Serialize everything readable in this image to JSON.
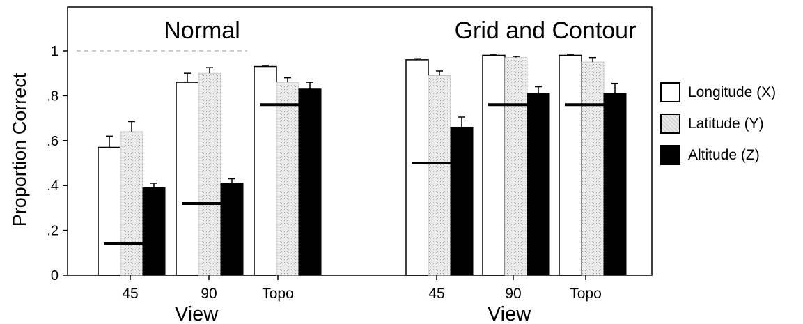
{
  "chart_data": {
    "type": "bar",
    "ylabel": "Proportion Correct",
    "y_ticks": [
      "0",
      ".2",
      ".4",
      ".6",
      ".8",
      "1"
    ],
    "ylim": [
      0,
      1.15
    ],
    "panels": [
      {
        "title": "Normal",
        "xlabel": "View",
        "categories": [
          "45",
          "90",
          "Topo"
        ],
        "series": [
          {
            "name": "Longitude (X)",
            "values": [
              0.57,
              0.86,
              0.93
            ],
            "errors": [
              0.05,
              0.04,
              0.005
            ]
          },
          {
            "name": "Latitude (Y)",
            "values": [
              0.64,
              0.9,
              0.86
            ],
            "errors": [
              0.045,
              0.025,
              0.02
            ]
          },
          {
            "name": "Altitude (Z)",
            "values": [
              0.39,
              0.41,
              0.83
            ],
            "errors": [
              0.02,
              0.02,
              0.03
            ]
          }
        ],
        "chance_lines": [
          0.14,
          0.32,
          0.76
        ]
      },
      {
        "title": "Grid and Contour",
        "xlabel": "View",
        "categories": [
          "45",
          "90",
          "Topo"
        ],
        "series": [
          {
            "name": "Longitude (X)",
            "values": [
              0.96,
              0.98,
              0.98
            ],
            "errors": [
              0.005,
              0.005,
              0.005
            ]
          },
          {
            "name": "Latitude (Y)",
            "values": [
              0.89,
              0.97,
              0.95
            ],
            "errors": [
              0.02,
              0.005,
              0.02
            ]
          },
          {
            "name": "Altitude (Z)",
            "values": [
              0.66,
              0.81,
              0.81
            ],
            "errors": [
              0.045,
              0.03,
              0.045
            ]
          }
        ],
        "chance_lines": [
          0.5,
          0.76,
          0.76
        ]
      }
    ],
    "legend": {
      "position": "right",
      "entries": [
        "Longitude (X)",
        "Latitude (Y)",
        "Altitude (Z)"
      ]
    },
    "colors": {
      "longitude": "#ffffff",
      "latitude": "#e3e3e3",
      "altitude": "#000000"
    }
  }
}
